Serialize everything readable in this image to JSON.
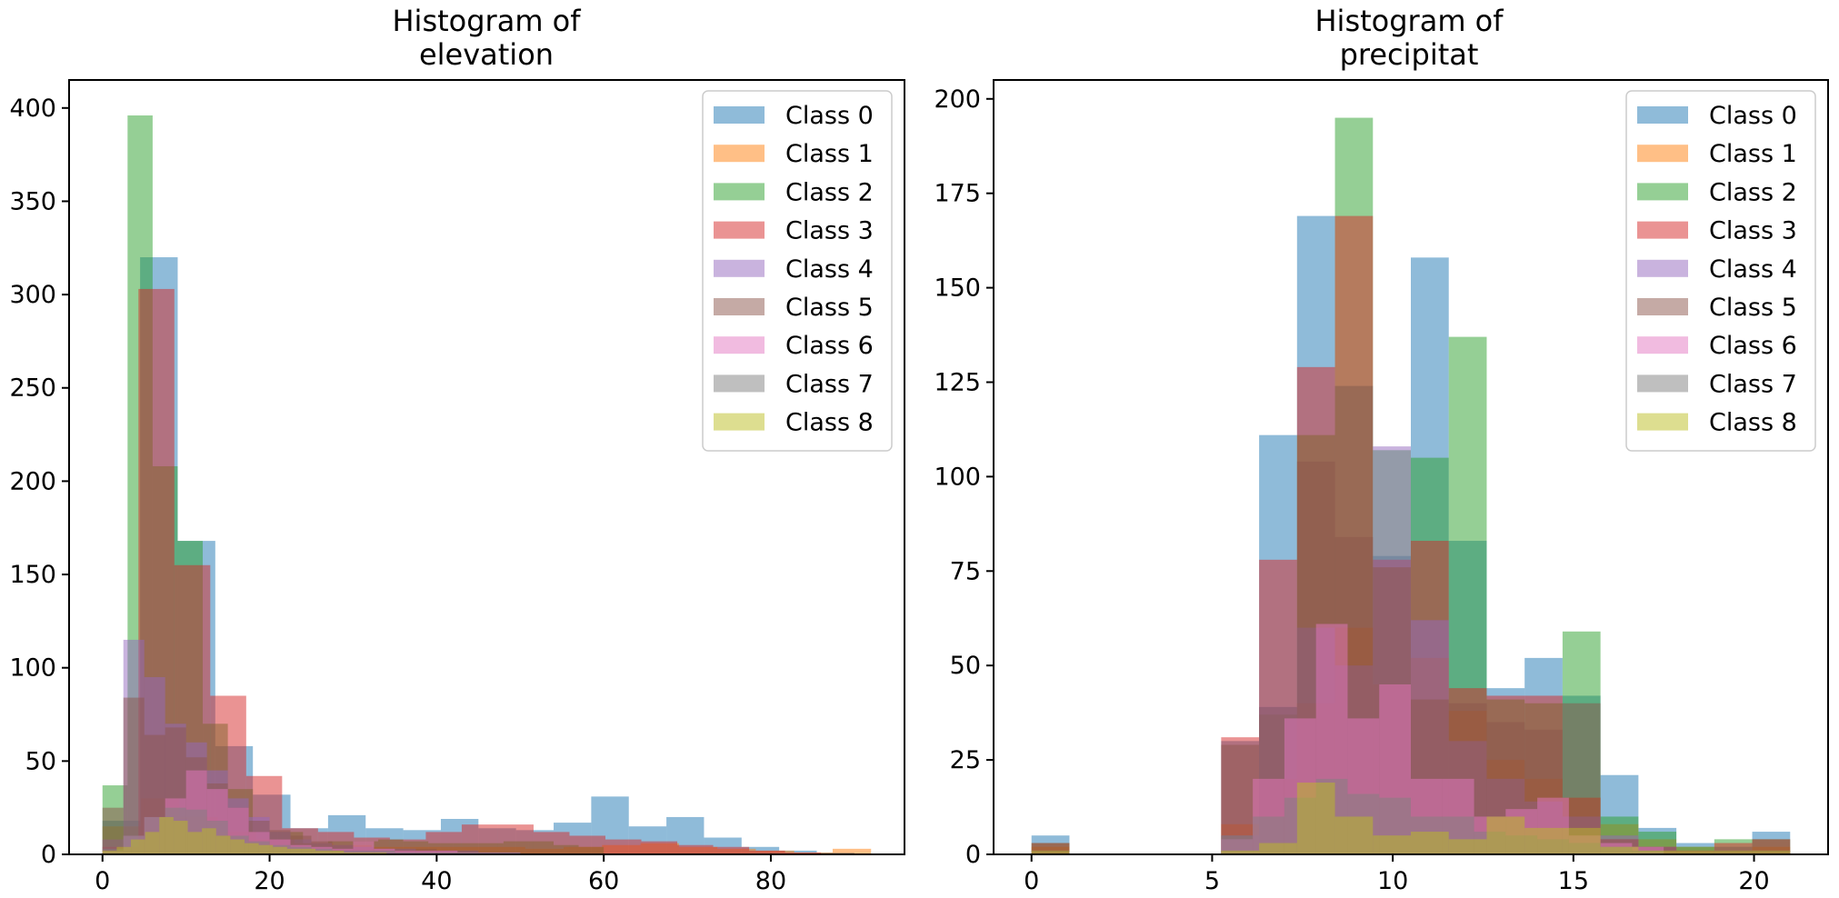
{
  "colors": [
    "#1f77b4",
    "#ff7f0e",
    "#2ca02c",
    "#d62728",
    "#9467bd",
    "#8c564b",
    "#e377c2",
    "#7f7f7f",
    "#bcbd22"
  ],
  "chart_data": [
    {
      "type": "histogram",
      "title": "Histogram of elevation",
      "title_lines": [
        "Histogram of",
        "elevation"
      ],
      "xlim": [
        -4,
        96
      ],
      "ylim": [
        0,
        415
      ],
      "xticks": [
        0,
        20,
        40,
        60,
        80
      ],
      "yticks": [
        0,
        50,
        100,
        150,
        200,
        250,
        300,
        350,
        400
      ],
      "legend_position": "top-right",
      "legend": [
        "Class 0",
        "Class 1",
        "Class 2",
        "Class 3",
        "Class 4",
        "Class 5",
        "Class 6",
        "Class 7",
        "Class 8"
      ],
      "series": [
        {
          "name": "Class 0",
          "edges": [
            0,
            4.5,
            9,
            13.5,
            18,
            22.5,
            27,
            31.5,
            36,
            40.5,
            45,
            49.5,
            54,
            58.5,
            63,
            67.5,
            72,
            76.5,
            81,
            85.5,
            90
          ],
          "counts": [
            18,
            320,
            168,
            58,
            32,
            14,
            21,
            14,
            13,
            19,
            14,
            13,
            17,
            31,
            15,
            20,
            9,
            4,
            2,
            1
          ]
        },
        {
          "name": "Class 1",
          "edges": [
            0,
            4.6,
            9.2,
            13.8,
            18.4,
            23,
            27.6,
            32.2,
            36.8,
            41.4,
            46,
            50.6,
            55.2,
            59.8,
            64.4,
            69,
            73.6,
            78.2,
            82.8,
            87.4,
            92
          ],
          "counts": [
            15,
            30,
            20,
            12,
            8,
            6,
            5,
            4,
            4,
            4,
            4,
            3,
            4,
            5,
            6,
            4,
            3,
            2,
            1,
            3
          ]
        },
        {
          "name": "Class 2",
          "edges": [
            0,
            3,
            6,
            9,
            12,
            15,
            18,
            21,
            24,
            27,
            30,
            33,
            36,
            39,
            42,
            45,
            48,
            51,
            54,
            57,
            60
          ],
          "counts": [
            37,
            396,
            208,
            168,
            70,
            35,
            12,
            12,
            6,
            7,
            7,
            8,
            7,
            6,
            6,
            6,
            7,
            7,
            5,
            4
          ]
        },
        {
          "name": "Class 3",
          "edges": [
            0,
            4.3,
            8.6,
            12.9,
            17.2,
            21.5,
            25.8,
            30.1,
            34.4,
            38.7,
            43,
            47.3,
            51.6,
            55.9,
            60.2,
            64.5,
            68.8,
            73.1,
            77.4,
            81.7,
            86
          ],
          "counts": [
            4,
            303,
            155,
            85,
            42,
            14,
            12,
            9,
            8,
            12,
            16,
            16,
            12,
            10,
            8,
            7,
            5,
            4,
            2,
            1
          ]
        },
        {
          "name": "Class 4",
          "edges": [
            0,
            2.5,
            5,
            7.5,
            10,
            12.5,
            15,
            17.5,
            20,
            22.5,
            25,
            27.5,
            30,
            32.5,
            35,
            37.5,
            40,
            42.5,
            45,
            47.5,
            50
          ],
          "counts": [
            8,
            115,
            95,
            70,
            60,
            45,
            30,
            20,
            12,
            8,
            6,
            5,
            4,
            3,
            3,
            2,
            2,
            2,
            1,
            1
          ]
        },
        {
          "name": "Class 5",
          "edges": [
            0,
            2.5,
            5,
            7.5,
            10,
            12.5,
            15,
            17.5,
            20,
            22.5,
            25,
            27.5,
            30,
            32.5,
            35,
            37.5,
            40,
            42.5,
            45,
            47.5,
            50
          ],
          "counts": [
            25,
            84,
            64,
            68,
            52,
            38,
            25,
            18,
            13,
            10,
            7,
            5,
            4,
            3,
            3,
            3,
            2,
            2,
            1,
            1
          ]
        },
        {
          "name": "Class 6",
          "edges": [
            0,
            2.5,
            5,
            7.5,
            10,
            12.5,
            15,
            17.5,
            20,
            22.5,
            25,
            27.5,
            30,
            32.5,
            35,
            37.5,
            40,
            42.5,
            45,
            47.5,
            50
          ],
          "counts": [
            2,
            10,
            20,
            30,
            45,
            35,
            25,
            12,
            8,
            5,
            4,
            3,
            7,
            3,
            2,
            2,
            2,
            1,
            1,
            1
          ]
        },
        {
          "name": "Class 7",
          "edges": [
            0,
            2.5,
            5,
            7.5,
            10,
            12.5,
            15,
            17.5,
            20,
            22.5,
            25,
            27.5,
            30,
            32.5,
            35,
            37.5,
            40,
            42.5,
            45,
            47.5,
            50
          ],
          "counts": [
            3,
            10,
            20,
            25,
            24,
            18,
            10,
            7,
            5,
            4,
            3,
            2,
            2,
            2,
            1,
            1,
            1,
            1,
            1,
            1
          ]
        },
        {
          "name": "Class 8",
          "edges": [
            0,
            1.7,
            3.4,
            5.1,
            6.8,
            8.5,
            10.2,
            11.9,
            13.6,
            15.3,
            17,
            18.7,
            20.4,
            22.1,
            23.8,
            25.5,
            27.2,
            28.9,
            30.6,
            32.3,
            34
          ],
          "counts": [
            2,
            4,
            8,
            12,
            20,
            18,
            12,
            14,
            10,
            8,
            6,
            5,
            4,
            3,
            3,
            2,
            2,
            1,
            1,
            1
          ]
        }
      ]
    },
    {
      "type": "histogram",
      "title": "Histogram of precipitat",
      "title_lines": [
        "Histogram of",
        "precipitat"
      ],
      "xlim": [
        -1.05,
        22.05
      ],
      "ylim": [
        0,
        205
      ],
      "xticks": [
        0,
        5,
        10,
        15,
        20
      ],
      "yticks": [
        0,
        25,
        50,
        75,
        100,
        125,
        150,
        175,
        200
      ],
      "legend_position": "top-right",
      "legend": [
        "Class 0",
        "Class 1",
        "Class 2",
        "Class 3",
        "Class 4",
        "Class 5",
        "Class 6",
        "Class 7",
        "Class 8"
      ],
      "series": [
        {
          "name": "Class 0",
          "edges": [
            0,
            1.05,
            2.1,
            3.15,
            4.2,
            5.25,
            6.3,
            7.35,
            8.4,
            9.45,
            10.5,
            11.55,
            12.6,
            13.65,
            14.7,
            15.75,
            16.8,
            17.85,
            18.9,
            19.95,
            21
          ],
          "counts": [
            5,
            0,
            0,
            0,
            0,
            30,
            111,
            169,
            124,
            79,
            158,
            83,
            44,
            52,
            42,
            21,
            7,
            3,
            2,
            6
          ]
        },
        {
          "name": "Class 1",
          "edges": [
            0,
            1.05,
            2.1,
            3.15,
            4.2,
            5.25,
            6.3,
            7.35,
            8.4,
            9.45,
            10.5,
            11.55,
            12.6,
            13.65,
            14.7,
            15.75,
            16.8,
            17.85,
            18.9,
            19.95,
            21
          ],
          "counts": [
            2,
            0,
            0,
            0,
            0,
            8,
            20,
            40,
            60,
            45,
            52,
            38,
            25,
            20,
            15,
            8,
            4,
            2,
            1,
            2
          ]
        },
        {
          "name": "Class 2",
          "edges": [
            0,
            1.05,
            2.1,
            3.15,
            4.2,
            5.25,
            6.3,
            7.35,
            8.4,
            9.45,
            10.5,
            11.55,
            12.6,
            13.65,
            14.7,
            15.75,
            16.8,
            17.85,
            18.9,
            19.95,
            21
          ],
          "counts": [
            3,
            0,
            0,
            0,
            0,
            1,
            37,
            111,
            195,
            107,
            105,
            137,
            41,
            40,
            59,
            10,
            6,
            2,
            4,
            4
          ]
        },
        {
          "name": "Class 3",
          "edges": [
            0,
            1.05,
            2.1,
            3.15,
            4.2,
            5.25,
            6.3,
            7.35,
            8.4,
            9.45,
            10.5,
            11.55,
            12.6,
            13.65,
            14.7,
            15.75,
            16.8,
            17.85,
            18.9,
            19.95,
            21
          ],
          "counts": [
            3,
            0,
            0,
            0,
            0,
            31,
            78,
            129,
            169,
            78,
            83,
            44,
            42,
            42,
            15,
            4,
            2,
            1,
            3,
            4
          ]
        },
        {
          "name": "Class 4",
          "edges": [
            0,
            1.05,
            2.1,
            3.15,
            4.2,
            5.25,
            6.3,
            7.35,
            8.4,
            9.45,
            10.5,
            11.55,
            12.6,
            13.65,
            14.7,
            15.75,
            16.8,
            17.85,
            18.9,
            19.95,
            21
          ],
          "counts": [
            1,
            0,
            0,
            0,
            0,
            5,
            39,
            60,
            50,
            108,
            62,
            30,
            20,
            14,
            10,
            5,
            2,
            1,
            1,
            1
          ]
        },
        {
          "name": "Class 5",
          "edges": [
            0,
            1.05,
            2.1,
            3.15,
            4.2,
            5.25,
            6.3,
            7.35,
            8.4,
            9.45,
            10.5,
            11.55,
            12.6,
            13.65,
            14.7,
            15.75,
            16.8,
            17.85,
            18.9,
            19.95,
            21
          ],
          "counts": [
            1,
            0,
            0,
            0,
            0,
            29,
            39,
            104,
            84,
            76,
            41,
            40,
            35,
            33,
            40,
            4,
            2,
            1,
            1,
            1
          ]
        },
        {
          "name": "Class 6",
          "edges": [
            0,
            0.875,
            1.75,
            2.625,
            3.5,
            4.375,
            5.25,
            6.125,
            7,
            7.875,
            8.75,
            9.625,
            10.5,
            11.375,
            12.25,
            13.125,
            14,
            14.875,
            15.75,
            16.625,
            17.5
          ],
          "counts": [
            0,
            0,
            0,
            0,
            0,
            0,
            4,
            20,
            36,
            61,
            36,
            45,
            20,
            20,
            10,
            12,
            15,
            5,
            3,
            2
          ]
        },
        {
          "name": "Class 7",
          "edges": [
            0,
            0.875,
            1.75,
            2.625,
            3.5,
            4.375,
            5.25,
            6.125,
            7,
            7.875,
            8.75,
            9.625,
            10.5,
            11.375,
            12.25,
            13.125,
            14,
            14.875,
            15.75,
            16.625,
            17.5
          ],
          "counts": [
            0,
            0,
            0,
            0,
            0,
            0,
            5,
            10,
            15,
            20,
            16,
            15,
            10,
            10,
            6,
            5,
            4,
            3,
            2,
            1
          ]
        },
        {
          "name": "Class 8",
          "edges": [
            0,
            1.05,
            2.1,
            3.15,
            4.2,
            5.25,
            6.3,
            7.35,
            8.4,
            9.45,
            10.5,
            11.55,
            12.6,
            13.65,
            14.7,
            15.75,
            16.8,
            17.85,
            18.9,
            19.95,
            21
          ],
          "counts": [
            1,
            0,
            0,
            0,
            0,
            1,
            3,
            19,
            10,
            5,
            6,
            4,
            10,
            7,
            7,
            2,
            1,
            1,
            1,
            1
          ]
        }
      ]
    }
  ]
}
